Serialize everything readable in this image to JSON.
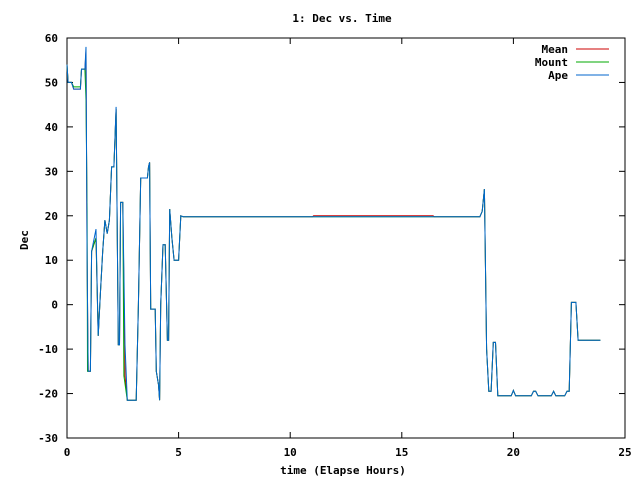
{
  "chart_data": {
    "type": "line",
    "title": "1: Dec vs. Time",
    "xlabel": "time (Elapse Hours)",
    "ylabel": "Dec",
    "xlim": [
      0,
      25
    ],
    "ylim": [
      -30,
      60
    ],
    "x_ticks": [
      0,
      5,
      10,
      15,
      20,
      25
    ],
    "y_ticks": [
      -30,
      -20,
      -10,
      0,
      10,
      20,
      30,
      40,
      50,
      60
    ],
    "grid": false,
    "legend_position": "top-right",
    "series": [
      {
        "name": "Mean",
        "color": "#cc0000",
        "points": [
          [
            0,
            54
          ],
          [
            0.05,
            50
          ],
          [
            0.2,
            50
          ],
          [
            0.3,
            48.5
          ],
          [
            0.6,
            48.5
          ],
          [
            0.65,
            53
          ],
          [
            0.8,
            53
          ],
          [
            0.85,
            57
          ],
          [
            0.9,
            10
          ],
          [
            0.95,
            -15
          ],
          [
            1.05,
            -15
          ],
          [
            1.1,
            12
          ],
          [
            1.3,
            15
          ],
          [
            1.4,
            -7
          ],
          [
            1.5,
            3
          ],
          [
            1.6,
            12
          ],
          [
            1.7,
            19
          ],
          [
            1.8,
            16
          ],
          [
            1.9,
            19
          ],
          [
            2.0,
            31
          ],
          [
            2.1,
            31
          ],
          [
            2.2,
            44
          ],
          [
            2.3,
            -9
          ],
          [
            2.35,
            -9
          ],
          [
            2.4,
            23
          ],
          [
            2.5,
            23
          ],
          [
            2.6,
            -16
          ],
          [
            2.7,
            -21.5
          ],
          [
            3.1,
            -21.5
          ],
          [
            3.2,
            0
          ],
          [
            3.3,
            28.5
          ],
          [
            3.6,
            28.5
          ],
          [
            3.65,
            31
          ],
          [
            3.7,
            32
          ],
          [
            3.75,
            -1
          ],
          [
            3.95,
            -1
          ],
          [
            4.0,
            -15
          ],
          [
            4.1,
            -18
          ],
          [
            4.15,
            -21.5
          ],
          [
            4.2,
            0
          ],
          [
            4.3,
            13.5
          ],
          [
            4.4,
            13.5
          ],
          [
            4.5,
            -8
          ],
          [
            4.55,
            -8
          ],
          [
            4.6,
            21.5
          ],
          [
            4.7,
            15
          ],
          [
            4.8,
            10
          ],
          [
            5.0,
            10
          ],
          [
            5.1,
            20
          ],
          [
            5.2,
            19.8
          ],
          [
            11.0,
            19.8
          ],
          [
            11.05,
            20
          ],
          [
            16.4,
            20
          ],
          [
            16.45,
            19.8
          ],
          [
            18.5,
            19.8
          ],
          [
            18.6,
            21
          ],
          [
            18.7,
            26
          ],
          [
            18.8,
            -10
          ],
          [
            18.9,
            -19.5
          ],
          [
            19.0,
            -19.5
          ],
          [
            19.1,
            -8.5
          ],
          [
            19.2,
            -8.5
          ],
          [
            19.3,
            -20.5
          ],
          [
            19.9,
            -20.5
          ],
          [
            20.0,
            -19.3
          ],
          [
            20.1,
            -20.5
          ],
          [
            20.8,
            -20.5
          ],
          [
            20.9,
            -19.5
          ],
          [
            21.0,
            -19.5
          ],
          [
            21.1,
            -20.5
          ],
          [
            21.7,
            -20.5
          ],
          [
            21.8,
            -19.5
          ],
          [
            21.9,
            -20.5
          ],
          [
            22.3,
            -20.5
          ],
          [
            22.4,
            -19.5
          ],
          [
            22.5,
            -19.5
          ],
          [
            22.6,
            0.5
          ],
          [
            22.8,
            0.5
          ],
          [
            22.9,
            -8
          ],
          [
            23.9,
            -8
          ]
        ]
      },
      {
        "name": "Mount",
        "color": "#00aa00",
        "points": [
          [
            0,
            54
          ],
          [
            0.05,
            50
          ],
          [
            0.2,
            50
          ],
          [
            0.3,
            49
          ],
          [
            0.6,
            49
          ],
          [
            0.65,
            53
          ],
          [
            0.8,
            53
          ],
          [
            0.85,
            46
          ],
          [
            0.9,
            21
          ],
          [
            0.92,
            -15
          ],
          [
            1.05,
            -15
          ],
          [
            1.1,
            12
          ],
          [
            1.3,
            15
          ],
          [
            1.4,
            -7
          ],
          [
            1.5,
            3
          ],
          [
            1.6,
            12
          ],
          [
            1.7,
            19
          ],
          [
            1.8,
            16
          ],
          [
            1.9,
            19
          ],
          [
            2.0,
            31
          ],
          [
            2.1,
            31
          ],
          [
            2.2,
            44
          ],
          [
            2.3,
            -9
          ],
          [
            2.35,
            -9
          ],
          [
            2.4,
            23
          ],
          [
            2.5,
            23
          ],
          [
            2.55,
            -16
          ],
          [
            2.7,
            -21.5
          ],
          [
            3.1,
            -21.5
          ],
          [
            3.2,
            0
          ],
          [
            3.3,
            28.5
          ],
          [
            3.6,
            28.5
          ],
          [
            3.65,
            31
          ],
          [
            3.7,
            32
          ],
          [
            3.75,
            -1
          ],
          [
            3.95,
            -1
          ],
          [
            4.0,
            -15
          ],
          [
            4.1,
            -18
          ],
          [
            4.15,
            -21.5
          ],
          [
            4.2,
            0
          ],
          [
            4.3,
            13.5
          ],
          [
            4.4,
            13.5
          ],
          [
            4.5,
            -8
          ],
          [
            4.55,
            -8
          ],
          [
            4.6,
            21.5
          ],
          [
            4.7,
            15
          ],
          [
            4.8,
            10
          ],
          [
            5.0,
            10
          ],
          [
            5.1,
            20
          ],
          [
            5.2,
            19.8
          ],
          [
            18.5,
            19.8
          ],
          [
            18.6,
            21
          ],
          [
            18.7,
            26
          ],
          [
            18.8,
            -10
          ],
          [
            18.9,
            -19.5
          ],
          [
            19.0,
            -19.5
          ],
          [
            19.1,
            -8.5
          ],
          [
            19.2,
            -8.5
          ],
          [
            19.3,
            -20.5
          ],
          [
            19.9,
            -20.5
          ],
          [
            20.0,
            -19.3
          ],
          [
            20.1,
            -20.5
          ],
          [
            20.8,
            -20.5
          ],
          [
            20.9,
            -19.5
          ],
          [
            21.0,
            -19.5
          ],
          [
            21.1,
            -20.5
          ],
          [
            21.7,
            -20.5
          ],
          [
            21.8,
            -19.5
          ],
          [
            21.9,
            -20.5
          ],
          [
            22.3,
            -20.5
          ],
          [
            22.4,
            -19.5
          ],
          [
            22.5,
            -19.5
          ],
          [
            22.6,
            0.5
          ],
          [
            22.8,
            0.5
          ],
          [
            22.9,
            -8
          ],
          [
            23.9,
            -8
          ]
        ]
      },
      {
        "name": "Ape",
        "color": "#0066cc",
        "points": [
          [
            0,
            54
          ],
          [
            0.05,
            50
          ],
          [
            0.2,
            50
          ],
          [
            0.3,
            48.5
          ],
          [
            0.6,
            48.5
          ],
          [
            0.65,
            53
          ],
          [
            0.8,
            53
          ],
          [
            0.85,
            58
          ],
          [
            0.9,
            10
          ],
          [
            0.95,
            -15
          ],
          [
            1.05,
            -15
          ],
          [
            1.1,
            12
          ],
          [
            1.3,
            17
          ],
          [
            1.4,
            -7
          ],
          [
            1.5,
            3
          ],
          [
            1.6,
            12
          ],
          [
            1.7,
            19
          ],
          [
            1.8,
            16
          ],
          [
            1.9,
            19
          ],
          [
            2.0,
            31
          ],
          [
            2.1,
            31
          ],
          [
            2.2,
            44.5
          ],
          [
            2.3,
            -9
          ],
          [
            2.35,
            -9
          ],
          [
            2.4,
            23
          ],
          [
            2.5,
            23
          ],
          [
            2.6,
            -9
          ],
          [
            2.7,
            -21.5
          ],
          [
            3.1,
            -21.5
          ],
          [
            3.2,
            0
          ],
          [
            3.3,
            28.5
          ],
          [
            3.6,
            28.5
          ],
          [
            3.65,
            31
          ],
          [
            3.7,
            32
          ],
          [
            3.75,
            -1
          ],
          [
            3.95,
            -1
          ],
          [
            4.0,
            -15
          ],
          [
            4.1,
            -18
          ],
          [
            4.15,
            -21.5
          ],
          [
            4.2,
            0
          ],
          [
            4.3,
            13.5
          ],
          [
            4.4,
            13.5
          ],
          [
            4.5,
            -8
          ],
          [
            4.55,
            -8
          ],
          [
            4.6,
            21.5
          ],
          [
            4.7,
            15
          ],
          [
            4.8,
            10
          ],
          [
            5.0,
            10
          ],
          [
            5.1,
            20
          ],
          [
            5.2,
            19.8
          ],
          [
            18.5,
            19.8
          ],
          [
            18.6,
            21
          ],
          [
            18.7,
            26
          ],
          [
            18.8,
            -10
          ],
          [
            18.9,
            -19.5
          ],
          [
            19.0,
            -19.5
          ],
          [
            19.1,
            -8.5
          ],
          [
            19.2,
            -8.5
          ],
          [
            19.3,
            -20.5
          ],
          [
            19.9,
            -20.5
          ],
          [
            20.0,
            -19.3
          ],
          [
            20.1,
            -20.5
          ],
          [
            20.8,
            -20.5
          ],
          [
            20.9,
            -19.5
          ],
          [
            21.0,
            -19.5
          ],
          [
            21.1,
            -20.5
          ],
          [
            21.7,
            -20.5
          ],
          [
            21.8,
            -19.5
          ],
          [
            21.9,
            -20.5
          ],
          [
            22.3,
            -20.5
          ],
          [
            22.4,
            -19.5
          ],
          [
            22.5,
            -19.5
          ],
          [
            22.6,
            0.5
          ],
          [
            22.8,
            0.5
          ],
          [
            22.9,
            -8
          ],
          [
            23.9,
            -8
          ]
        ]
      }
    ]
  }
}
